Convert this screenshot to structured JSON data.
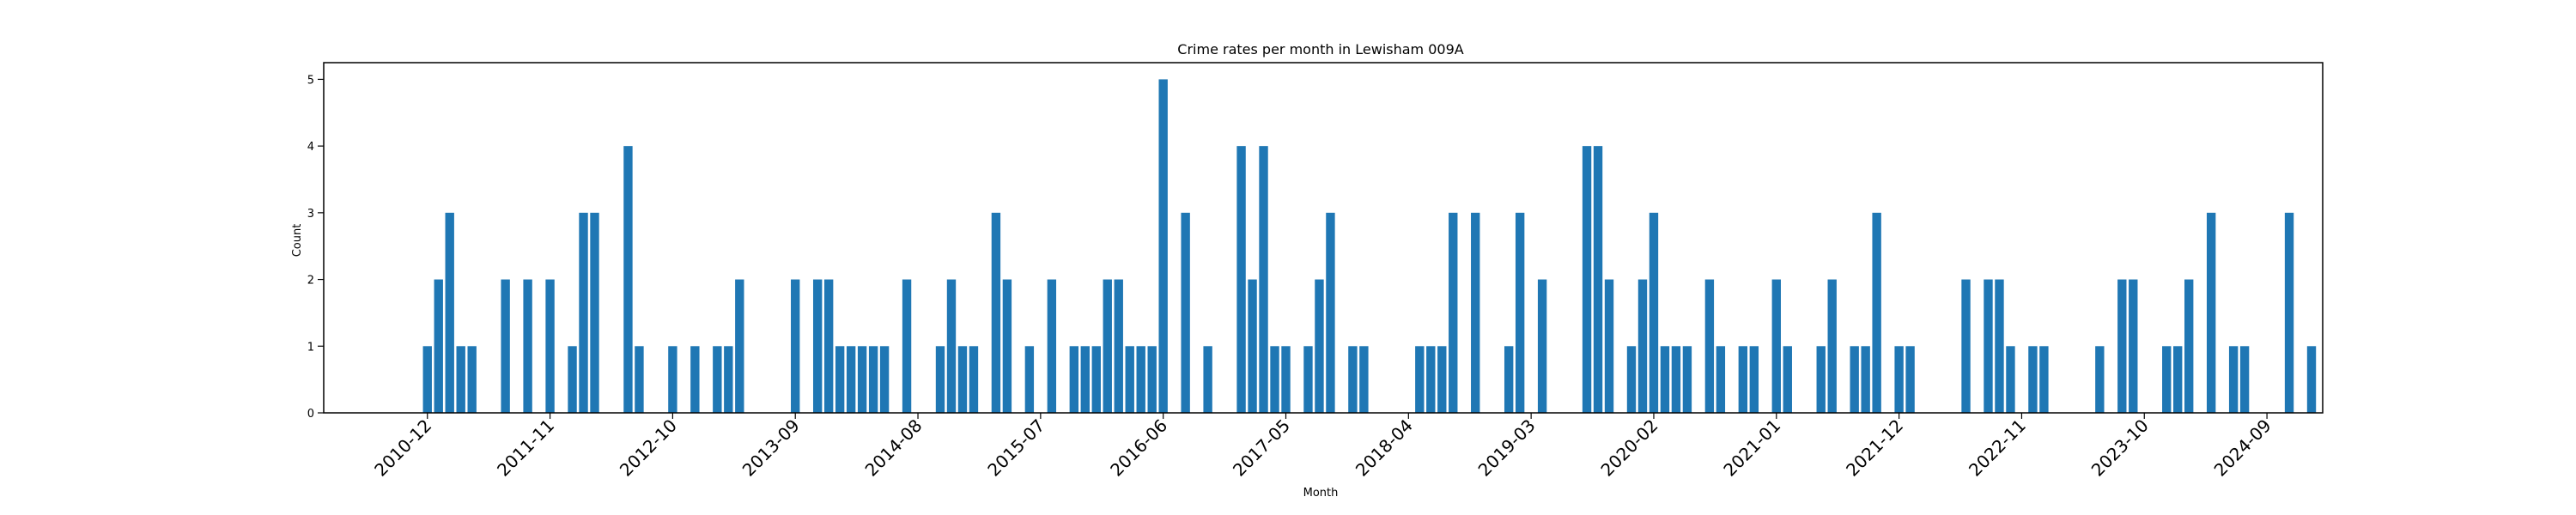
{
  "chart_data": {
    "type": "bar",
    "title": "Crime rates per month in Lewisham 009A",
    "xlabel": "Month",
    "ylabel": "Count",
    "ylim": [
      0,
      5.25
    ],
    "yticks": [
      0,
      1,
      2,
      3,
      4,
      5
    ],
    "x_tick_labels": [
      "2010-12",
      "2011-11",
      "2012-10",
      "2013-09",
      "2014-08",
      "2015-07",
      "2016-06",
      "2017-05",
      "2018-04",
      "2019-03",
      "2020-02",
      "2021-01",
      "2021-12",
      "2022-11",
      "2023-10",
      "2024-09"
    ],
    "bar_color": "#1f77b4",
    "grid": false,
    "legend": "none",
    "x": [
      "2010-12",
      "2011-01",
      "2011-02",
      "2011-03",
      "2011-04",
      "2011-07",
      "2011-09",
      "2011-11",
      "2012-01",
      "2012-02",
      "2012-03",
      "2012-06",
      "2012-07",
      "2012-10",
      "2012-12",
      "2013-02",
      "2013-03",
      "2013-04",
      "2013-09",
      "2013-11",
      "2013-12",
      "2014-01",
      "2014-02",
      "2014-03",
      "2014-04",
      "2014-05",
      "2014-07",
      "2014-10",
      "2014-11",
      "2014-12",
      "2015-01",
      "2015-03",
      "2015-04",
      "2015-06",
      "2015-08",
      "2015-10",
      "2015-11",
      "2015-12",
      "2016-01",
      "2016-02",
      "2016-03",
      "2016-04",
      "2016-05",
      "2016-06",
      "2016-08",
      "2016-10",
      "2017-01",
      "2017-02",
      "2017-03",
      "2017-04",
      "2017-05",
      "2017-07",
      "2017-08",
      "2017-09",
      "2017-11",
      "2017-12",
      "2018-05",
      "2018-06",
      "2018-07",
      "2018-08",
      "2018-10",
      "2019-01",
      "2019-02",
      "2019-04",
      "2019-08",
      "2019-09",
      "2019-10",
      "2019-12",
      "2020-01",
      "2020-02",
      "2020-03",
      "2020-04",
      "2020-05",
      "2020-07",
      "2020-08",
      "2020-10",
      "2020-11",
      "2021-01",
      "2021-02",
      "2021-05",
      "2021-06",
      "2021-08",
      "2021-09",
      "2021-10",
      "2021-12",
      "2022-01",
      "2022-06",
      "2022-08",
      "2022-09",
      "2022-10",
      "2022-12",
      "2023-01",
      "2023-06",
      "2023-08",
      "2023-09",
      "2023-12",
      "2024-01",
      "2024-02",
      "2024-04",
      "2024-06",
      "2024-07",
      "2024-11",
      "2025-01"
    ],
    "values": [
      1,
      2,
      3,
      1,
      1,
      2,
      2,
      2,
      1,
      3,
      3,
      4,
      1,
      1,
      1,
      1,
      1,
      2,
      2,
      2,
      2,
      1,
      1,
      1,
      1,
      1,
      2,
      1,
      2,
      1,
      1,
      3,
      2,
      1,
      2,
      1,
      1,
      1,
      2,
      2,
      1,
      1,
      1,
      5,
      3,
      1,
      4,
      2,
      4,
      1,
      1,
      1,
      2,
      3,
      1,
      1,
      1,
      1,
      1,
      3,
      3,
      1,
      3,
      2,
      4,
      4,
      2,
      1,
      2,
      3,
      1,
      1,
      1,
      2,
      1,
      1,
      1,
      2,
      1,
      1,
      2,
      1,
      1,
      3,
      1,
      1,
      2,
      2,
      2,
      1,
      1,
      1,
      1,
      2,
      2,
      1,
      1,
      2,
      3,
      1,
      1,
      3,
      1
    ]
  }
}
